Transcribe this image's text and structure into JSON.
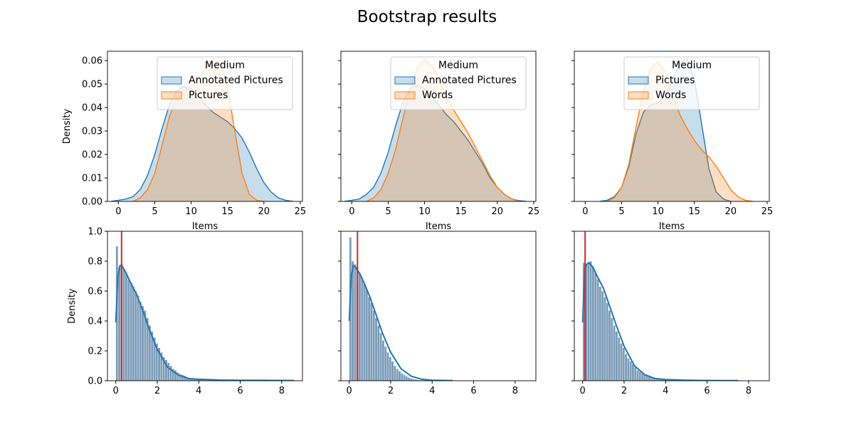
{
  "title": "Bootstrap results",
  "colors": {
    "blue": "#1f77b4",
    "orange": "#ff7f0e",
    "red": "#d62728",
    "hist": "#4f7ba0"
  },
  "chart_data": [
    {
      "type": "area",
      "chart": "kde",
      "xlabel": "Items",
      "ylabel": "Density",
      "xlim": [
        -1.5,
        25.3
      ],
      "ylim": [
        0,
        0.064
      ],
      "xticks": [
        "0",
        "5",
        "10",
        "15",
        "20",
        "25"
      ],
      "yticks": [
        "0.00",
        "0.01",
        "0.02",
        "0.03",
        "0.04",
        "0.05",
        "0.06"
      ],
      "legend": {
        "title": "Medium",
        "position": "top-right"
      },
      "series": [
        {
          "name": "Annotated Pictures",
          "color": "#1f77b4",
          "x": [
            -1,
            0,
            1,
            2,
            3,
            4,
            5,
            6,
            7,
            8,
            9,
            10,
            11,
            12,
            13,
            14,
            15,
            16,
            17,
            18,
            19,
            20,
            21,
            22,
            23,
            24
          ],
          "y": [
            0,
            0.0005,
            0.001,
            0.002,
            0.005,
            0.011,
            0.02,
            0.031,
            0.041,
            0.047,
            0.049,
            0.048,
            0.045,
            0.041,
            0.038,
            0.036,
            0.034,
            0.031,
            0.027,
            0.021,
            0.014,
            0.008,
            0.004,
            0.0015,
            0.0005,
            0
          ]
        },
        {
          "name": "Pictures",
          "color": "#ff7f0e",
          "x": [
            2,
            3,
            4,
            5,
            6,
            7,
            8,
            9,
            10,
            11,
            12,
            13,
            14,
            15,
            16,
            17,
            18,
            19,
            20
          ],
          "y": [
            0,
            0.0015,
            0.005,
            0.012,
            0.024,
            0.036,
            0.044,
            0.047,
            0.049,
            0.052,
            0.057,
            0.061,
            0.059,
            0.049,
            0.03,
            0.012,
            0.003,
            0.0005,
            0
          ]
        }
      ]
    },
    {
      "type": "area",
      "chart": "kde",
      "xlabel": "Items",
      "ylabel": "",
      "xlim": [
        -1.5,
        25.3
      ],
      "ylim": [
        0,
        0.064
      ],
      "xticks": [
        "0",
        "5",
        "10",
        "15",
        "20",
        "25"
      ],
      "yticks": [],
      "legend": {
        "title": "Medium",
        "position": "top-right"
      },
      "series": [
        {
          "name": "Annotated Pictures",
          "color": "#1f77b4",
          "x": [
            -1,
            0,
            1,
            2,
            3,
            4,
            5,
            6,
            7,
            8,
            9,
            10,
            11,
            12,
            13,
            14,
            15,
            16,
            17,
            18,
            19,
            20,
            21,
            22,
            23,
            24
          ],
          "y": [
            0,
            0.0005,
            0.001,
            0.003,
            0.006,
            0.012,
            0.021,
            0.032,
            0.042,
            0.048,
            0.0495,
            0.048,
            0.045,
            0.041,
            0.037,
            0.034,
            0.03,
            0.026,
            0.021,
            0.016,
            0.01,
            0.006,
            0.003,
            0.001,
            0.0003,
            0
          ]
        },
        {
          "name": "Words",
          "color": "#ff7f0e",
          "x": [
            2,
            3,
            4,
            5,
            6,
            7,
            8,
            9,
            10,
            11,
            12,
            13,
            14,
            15,
            16,
            17,
            18,
            19,
            20,
            21,
            22,
            23
          ],
          "y": [
            0,
            0.0015,
            0.005,
            0.012,
            0.022,
            0.035,
            0.048,
            0.057,
            0.0605,
            0.058,
            0.052,
            0.045,
            0.039,
            0.034,
            0.029,
            0.023,
            0.017,
            0.011,
            0.006,
            0.003,
            0.001,
            0
          ]
        }
      ]
    },
    {
      "type": "area",
      "chart": "kde",
      "xlabel": "Items",
      "ylabel": "",
      "xlim": [
        -1.5,
        25.3
      ],
      "ylim": [
        0,
        0.064
      ],
      "xticks": [
        "0",
        "5",
        "10",
        "15",
        "20",
        "25"
      ],
      "yticks": [],
      "legend": {
        "title": "Medium",
        "position": "top-right"
      },
      "series": [
        {
          "name": "Pictures",
          "color": "#1f77b4",
          "x": [
            2,
            3,
            4,
            5,
            6,
            7,
            8,
            9,
            10,
            11,
            12,
            13,
            14,
            15,
            16,
            17,
            18,
            19,
            20
          ],
          "y": [
            0,
            0.0005,
            0.002,
            0.006,
            0.015,
            0.029,
            0.038,
            0.041,
            0.042,
            0.045,
            0.052,
            0.059,
            0.061,
            0.052,
            0.033,
            0.014,
            0.004,
            0.001,
            0
          ]
        },
        {
          "name": "Words",
          "color": "#ff7f0e",
          "x": [
            3,
            4,
            5,
            6,
            7,
            8,
            9,
            10,
            11,
            12,
            13,
            14,
            15,
            16,
            17,
            18,
            19,
            20,
            21,
            22,
            23
          ],
          "y": [
            0,
            0.0015,
            0.006,
            0.016,
            0.032,
            0.047,
            0.057,
            0.0595,
            0.055,
            0.046,
            0.037,
            0.031,
            0.026,
            0.022,
            0.019,
            0.015,
            0.01,
            0.005,
            0.002,
            0.0005,
            0
          ]
        }
      ]
    },
    {
      "type": "bar",
      "chart": "histogram+kde",
      "xlabel": "",
      "ylabel": "Density",
      "xlim": [
        -0.4,
        9.0
      ],
      "ylim": [
        0,
        1.0
      ],
      "xticks": [
        "0",
        "2",
        "4",
        "6",
        "8"
      ],
      "yticks": [
        "0.0",
        "0.2",
        "0.4",
        "0.6",
        "0.8",
        "1.0"
      ],
      "vline_x": 0.28,
      "hist": [
        0.9,
        0.76,
        0.78,
        0.75,
        0.72,
        0.68,
        0.66,
        0.63,
        0.6,
        0.57,
        0.53,
        0.5,
        0.47,
        0.42,
        0.37,
        0.33,
        0.29,
        0.25,
        0.22,
        0.19,
        0.16,
        0.14,
        0.12,
        0.1,
        0.08,
        0.07,
        0.055,
        0.045,
        0.04,
        0.035,
        0.025,
        0.02,
        0.015,
        0.012,
        0.01,
        0.008,
        0.006,
        0.005,
        0.004,
        0.003,
        0.003,
        0.002,
        0.002,
        0.002,
        0.001,
        0.001,
        0.001,
        0.001,
        0.001,
        0.001,
        0.001,
        0.001,
        0.001,
        0.001,
        0.001,
        0.001,
        0.001,
        0.001,
        0.001,
        0.001,
        0.001,
        0.001,
        0.001,
        0.001,
        0.001,
        0.001,
        0.001,
        0.001,
        0.001,
        0.001,
        0.001,
        0.001,
        0.001,
        0.001,
        0.001,
        0.001
      ],
      "hist_bin_width": 0.113,
      "kde": {
        "x": [
          0,
          0.1,
          0.2,
          0.3,
          0.5,
          0.7,
          1.0,
          1.3,
          1.6,
          2.0,
          2.5,
          3.0,
          3.5,
          4.0,
          5.0,
          6.0,
          7.0,
          8.6
        ],
        "y": [
          0.39,
          0.7,
          0.77,
          0.77,
          0.72,
          0.66,
          0.58,
          0.47,
          0.35,
          0.21,
          0.09,
          0.04,
          0.015,
          0.01,
          0.005,
          0.003,
          0.003,
          0.002
        ]
      }
    },
    {
      "type": "bar",
      "chart": "histogram+kde",
      "xlabel": "",
      "ylabel": "",
      "xlim": [
        -0.4,
        9.0
      ],
      "ylim": [
        0,
        1.0
      ],
      "xticks": [
        "0",
        "2",
        "4",
        "6",
        "8"
      ],
      "yticks": [],
      "vline_x": 0.4,
      "hist": [
        0.96,
        0.8,
        0.78,
        0.76,
        0.72,
        0.69,
        0.65,
        0.61,
        0.56,
        0.52,
        0.47,
        0.42,
        0.37,
        0.32,
        0.27,
        0.23,
        0.19,
        0.16,
        0.13,
        0.1,
        0.08,
        0.065,
        0.05,
        0.04,
        0.03,
        0.022,
        0.016,
        0.012,
        0.009,
        0.006,
        0.005,
        0.004,
        0.003,
        0.002,
        0.002,
        0.001,
        0.001,
        0.001,
        0.001,
        0.001,
        0.001,
        0.001,
        0.001,
        0.001,
        0.001
      ],
      "hist_bin_width": 0.113,
      "kde": {
        "x": [
          0,
          0.1,
          0.2,
          0.3,
          0.5,
          0.7,
          1.0,
          1.3,
          1.6,
          2.0,
          2.5,
          3.0,
          3.5,
          4.0,
          5.0
        ],
        "y": [
          0.4,
          0.7,
          0.77,
          0.76,
          0.72,
          0.66,
          0.56,
          0.44,
          0.32,
          0.19,
          0.08,
          0.03,
          0.01,
          0.004,
          0.001
        ]
      }
    },
    {
      "type": "bar",
      "chart": "histogram+kde",
      "xlabel": "",
      "ylabel": "",
      "xlim": [
        -0.4,
        9.0
      ],
      "ylim": [
        0,
        1.0
      ],
      "xticks": [
        "0",
        "2",
        "4",
        "6",
        "8"
      ],
      "yticks": [],
      "vline_x": 0.12,
      "hist": [
        0.79,
        0.78,
        0.79,
        0.8,
        0.76,
        0.72,
        0.68,
        0.63,
        0.6,
        0.56,
        0.52,
        0.47,
        0.42,
        0.37,
        0.33,
        0.29,
        0.25,
        0.22,
        0.18,
        0.15,
        0.13,
        0.11,
        0.09,
        0.07,
        0.06,
        0.05,
        0.04,
        0.035,
        0.03,
        0.025,
        0.02,
        0.015,
        0.012,
        0.01,
        0.008,
        0.006,
        0.005,
        0.004,
        0.003,
        0.003,
        0.002,
        0.002,
        0.002,
        0.001,
        0.001,
        0.001,
        0.001,
        0.001,
        0.001,
        0.001,
        0.001,
        0.001,
        0.001,
        0.001,
        0.001,
        0.001,
        0.001,
        0.001,
        0.001,
        0.001,
        0.001,
        0.001,
        0.001,
        0.001,
        0.001,
        0.001
      ],
      "hist_bin_width": 0.113,
      "kde": {
        "x": [
          0,
          0.1,
          0.2,
          0.3,
          0.5,
          0.7,
          1.0,
          1.3,
          1.6,
          2.0,
          2.5,
          3.0,
          3.5,
          4.0,
          5.0,
          6.0,
          7.5
        ],
        "y": [
          0.39,
          0.75,
          0.78,
          0.79,
          0.76,
          0.7,
          0.62,
          0.5,
          0.38,
          0.23,
          0.1,
          0.04,
          0.015,
          0.008,
          0.004,
          0.002,
          0.001
        ]
      }
    }
  ]
}
